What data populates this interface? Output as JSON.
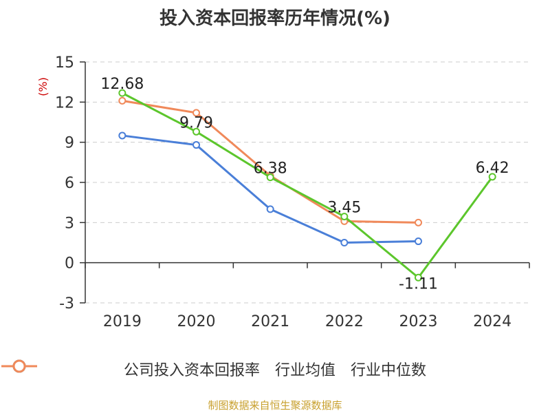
{
  "chart_data": {
    "type": "line",
    "title": "投入资本回报率历年情况(%)",
    "ylabel": "(%)",
    "xlabel": "",
    "categories": [
      "2019",
      "2020",
      "2021",
      "2022",
      "2023",
      "2024"
    ],
    "ylim": [
      -3,
      15
    ],
    "yticks": [
      -3,
      0,
      3,
      6,
      9,
      12,
      15
    ],
    "grid": true,
    "legend_position": "bottom",
    "series": [
      {
        "name": "公司投入资本回报率",
        "color": "#5cc62c",
        "values": [
          12.68,
          9.79,
          6.38,
          3.45,
          -1.11,
          6.42
        ],
        "labels": [
          "12.68",
          "9.79",
          "6.38",
          "3.45",
          "-1.11",
          "6.42"
        ]
      },
      {
        "name": "行业均值",
        "color": "#4a7fd8",
        "values": [
          9.5,
          8.8,
          4.0,
          1.5,
          1.6,
          null
        ]
      },
      {
        "name": "行业中位数",
        "color": "#f0895a",
        "values": [
          12.1,
          11.2,
          6.5,
          3.1,
          3.0,
          null
        ]
      }
    ]
  },
  "source": "制图数据来自恒生聚源数据库"
}
